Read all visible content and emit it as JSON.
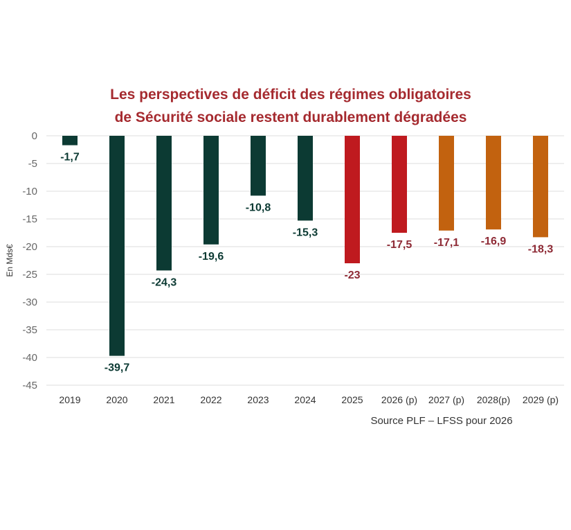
{
  "chart_data": {
    "type": "bar",
    "title": "Les perspectives de déficit des régimes obligatoires de Sécurité sociale restent durablement dégradées",
    "title_lines": [
      "Les perspectives de déficit des régimes obligatoires",
      "de Sécurité sociale restent durablement dégradées"
    ],
    "xlabel": "",
    "ylabel": "En Mds€",
    "ylim": [
      -45,
      0
    ],
    "yticks": [
      0,
      -5,
      -10,
      -15,
      -20,
      -25,
      -30,
      -35,
      -40,
      -45
    ],
    "grid": true,
    "categories": [
      "2019",
      "2020",
      "2021",
      "2022",
      "2023",
      "2024",
      "2025",
      "2026 (p)",
      "2027 (p)",
      "2028(p)",
      "2029 (p)"
    ],
    "values": [
      -1.7,
      -39.7,
      -24.3,
      -19.6,
      -10.8,
      -15.3,
      -23,
      -17.5,
      -17.1,
      -16.9,
      -18.3
    ],
    "data_labels": [
      "-1,7",
      "-39,7",
      "-24,3",
      "-19,6",
      "-10,8",
      "-15,3",
      "-23",
      "-17,5",
      "-17,1",
      "-16,9",
      "-18,3"
    ],
    "bar_colors": [
      "#0c3a33",
      "#0c3a33",
      "#0c3a33",
      "#0c3a33",
      "#0c3a33",
      "#0c3a33",
      "#bf1a1f",
      "#bf1a1f",
      "#c2620f",
      "#c2620f",
      "#c2620f"
    ],
    "label_colors": [
      "#0c3a33",
      "#0c3a33",
      "#0c3a33",
      "#0c3a33",
      "#0c3a33",
      "#0c3a33",
      "#8e2a35",
      "#8e2a35",
      "#8e2a35",
      "#8e2a35",
      "#8e2a35"
    ],
    "source": "Source PLF – LFSS pour 2026"
  }
}
